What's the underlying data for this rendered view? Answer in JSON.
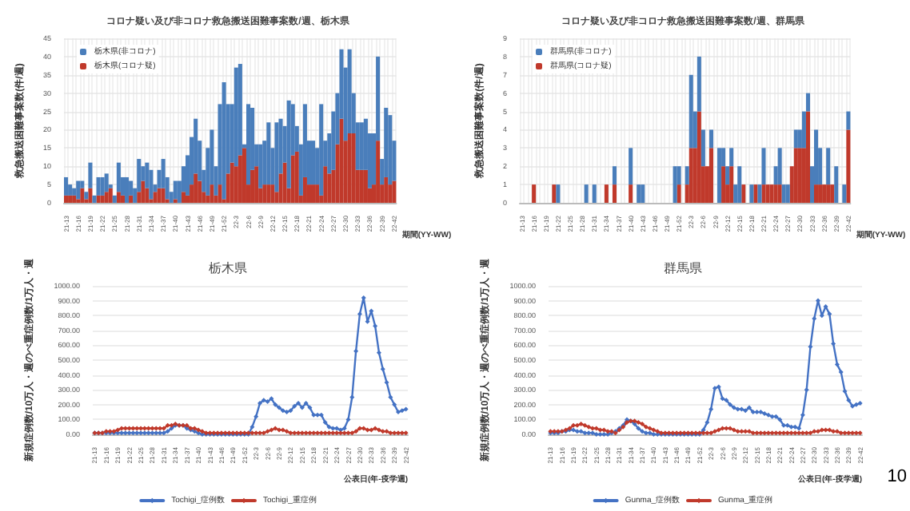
{
  "chart_data": [
    {
      "type": "bar",
      "title": "コロナ疑い及び非コロナ救急搬送困難事案数/週、栃木県",
      "xlabel": "期間(YY-WW)",
      "ylabel": "救急搬送困難事案数(件/週)",
      "stacked": true,
      "grid": true,
      "legend": "top left",
      "ylim": [
        0,
        45
      ],
      "yticks": [
        0,
        5,
        10,
        15,
        20,
        25,
        30,
        35,
        40,
        45
      ],
      "categories": [
        "21-13",
        null,
        null,
        "21-16",
        null,
        null,
        "21-19",
        null,
        null,
        "21-22",
        null,
        null,
        "21-25",
        null,
        null,
        "21-28",
        null,
        null,
        "21-31",
        null,
        null,
        "21-34",
        null,
        null,
        "21-37",
        null,
        null,
        "21-40",
        null,
        null,
        "21-43",
        null,
        null,
        "21-46",
        null,
        null,
        "21-49",
        null,
        null,
        "21-52",
        null,
        null,
        "22-3",
        null,
        null,
        "22-6",
        null,
        null,
        "22-9",
        null,
        null,
        "22-12",
        null,
        null,
        "22-15",
        null,
        null,
        "22-18",
        null,
        null,
        "22-21",
        null,
        null,
        "22-24",
        null,
        null,
        "22-27",
        null,
        null,
        "22-30",
        null,
        null,
        "22-33",
        null,
        null,
        "22-36",
        null,
        null,
        "22-39",
        null,
        null,
        "22-42"
      ],
      "series": [
        {
          "name": "栃木県(コロナ疑)",
          "color": "#c0392b",
          "values": [
            2,
            2,
            2,
            1,
            4,
            1,
            4,
            0,
            2,
            2,
            3,
            4,
            0,
            3,
            2,
            0,
            2,
            0,
            3,
            6,
            4,
            1,
            3,
            4,
            4,
            1,
            0,
            1,
            0,
            3,
            2,
            5,
            8,
            6,
            3,
            2,
            5,
            2,
            5,
            1,
            8,
            11,
            10,
            13,
            15,
            5,
            9,
            10,
            4,
            5,
            5,
            5,
            3,
            8,
            11,
            4,
            13,
            14,
            2,
            7,
            5,
            5,
            5,
            2,
            10,
            8,
            9,
            16,
            23,
            17,
            19,
            19,
            9,
            9,
            9,
            4,
            5,
            17,
            5,
            7,
            5,
            6
          ]
        },
        {
          "name": "栃木県(非コロナ)",
          "color": "#4a7ebb",
          "values": [
            5,
            3,
            2,
            5,
            2,
            2,
            7,
            2,
            5,
            5,
            5,
            1,
            2,
            8,
            5,
            7,
            4,
            4,
            9,
            4,
            7,
            8,
            2,
            5,
            8,
            6,
            3,
            5,
            6,
            7,
            11,
            13,
            15,
            11,
            6,
            13,
            15,
            8,
            22,
            32,
            19,
            16,
            27,
            25,
            1,
            22,
            17,
            6,
            12,
            12,
            17,
            10,
            19,
            15,
            10,
            24,
            14,
            7,
            14,
            20,
            12,
            12,
            10,
            25,
            7,
            11,
            16,
            14,
            19,
            20,
            23,
            11,
            13,
            13,
            14,
            15,
            14,
            23,
            7,
            19,
            19,
            11
          ]
        }
      ]
    },
    {
      "type": "bar",
      "title": "コロナ疑い及び非コロナ救急搬送困難事案数/週、群馬県",
      "xlabel": "期間(YY-WW)",
      "ylabel": "救急搬送困難事案数(件/週)",
      "stacked": true,
      "grid": true,
      "legend": "top left",
      "ylim": [
        0,
        9
      ],
      "yticks": [
        0,
        1,
        2,
        3,
        4,
        5,
        6,
        7,
        8,
        9
      ],
      "categories": [
        "21-13",
        null,
        null,
        "21-16",
        null,
        null,
        "21-19",
        null,
        null,
        "21-22",
        null,
        null,
        "21-25",
        null,
        null,
        "21-28",
        null,
        null,
        "21-31",
        null,
        null,
        "21-34",
        null,
        null,
        "21-37",
        null,
        null,
        "21-40",
        null,
        null,
        "21-43",
        null,
        null,
        "21-46",
        null,
        null,
        "21-49",
        null,
        null,
        "21-52",
        null,
        null,
        "22-3",
        null,
        null,
        "22-6",
        null,
        null,
        "22-9",
        null,
        null,
        "22-12",
        null,
        null,
        "22-15",
        null,
        null,
        "22-18",
        null,
        null,
        "22-21",
        null,
        null,
        "22-24",
        null,
        null,
        "22-27",
        null,
        null,
        "22-30",
        null,
        null,
        "22-33",
        null,
        null,
        "22-36",
        null,
        null,
        "22-39",
        null,
        null,
        "22-42"
      ],
      "series": [
        {
          "name": "群馬県(コロナ疑)",
          "color": "#c0392b",
          "values": [
            0,
            0,
            0,
            1,
            0,
            0,
            0,
            0,
            1,
            0,
            0,
            0,
            0,
            0,
            0,
            0,
            0,
            0,
            0,
            0,
            0,
            1,
            0,
            1,
            0,
            0,
            0,
            1,
            0,
            0,
            0,
            0,
            0,
            0,
            0,
            0,
            0,
            0,
            0,
            1,
            0,
            1,
            3,
            3,
            5,
            2,
            2,
            3,
            0,
            0,
            2,
            1,
            2,
            0,
            0,
            1,
            0,
            0,
            1,
            0,
            1,
            1,
            1,
            1,
            1,
            0,
            0,
            2,
            3,
            3,
            3,
            5,
            0,
            1,
            1,
            1,
            1,
            1,
            0,
            0,
            0,
            4
          ]
        },
        {
          "name": "群馬県(非コロナ)",
          "color": "#4a7ebb",
          "values": [
            0,
            0,
            0,
            0,
            0,
            0,
            0,
            0,
            0,
            1,
            0,
            0,
            0,
            0,
            0,
            0,
            1,
            0,
            1,
            0,
            0,
            0,
            0,
            1,
            0,
            0,
            0,
            2,
            0,
            1,
            1,
            0,
            0,
            0,
            0,
            0,
            0,
            0,
            2,
            1,
            0,
            1,
            4,
            2,
            3,
            2,
            0,
            1,
            0,
            3,
            1,
            1,
            1,
            1,
            2,
            0,
            0,
            1,
            0,
            1,
            2,
            0,
            0,
            1,
            2,
            1,
            1,
            0,
            1,
            1,
            2,
            1,
            2,
            3,
            2,
            0,
            2,
            0,
            2,
            0,
            1,
            1
          ]
        }
      ]
    },
    {
      "type": "line",
      "title": "栃木県",
      "xlabel": "公表日(年-疫学週)",
      "ylabel": "新規症例数/10万人・週のべ重症例数/1万人・週",
      "grid": "y",
      "legend": "bottom",
      "marker": "diamond",
      "line_style": "solid",
      "ylim": [
        0,
        1000
      ],
      "yticks": [
        {
          "value": 0,
          "label": "0.00"
        },
        {
          "value": 100,
          "label": "100.00"
        },
        {
          "value": 200,
          "label": "200.00"
        },
        {
          "value": 300,
          "label": "300.00"
        },
        {
          "value": 400,
          "label": "400.00"
        },
        {
          "value": 500,
          "label": "500.00"
        },
        {
          "value": 600,
          "label": "600.00"
        },
        {
          "value": 700,
          "label": "700.00"
        },
        {
          "value": 800,
          "label": "800.00"
        },
        {
          "value": 900,
          "label": "900.00"
        },
        {
          "value": 1000,
          "label": "1000.00"
        }
      ],
      "categories": [
        "21-13",
        null,
        null,
        "21-16",
        null,
        null,
        "21-19",
        null,
        null,
        "21-22",
        null,
        null,
        "21-25",
        null,
        null,
        "21-28",
        null,
        null,
        "21-31",
        null,
        null,
        "21-34",
        null,
        null,
        "21-37",
        null,
        null,
        "21-40",
        null,
        null,
        "21-43",
        null,
        null,
        "21-46",
        null,
        null,
        "21-49",
        null,
        null,
        "21-52",
        null,
        null,
        "22-3",
        null,
        null,
        "22-6",
        null,
        null,
        "22-9",
        null,
        null,
        "22-12",
        null,
        null,
        "22-15",
        null,
        null,
        "22-18",
        null,
        null,
        "22-21",
        null,
        null,
        "22-24",
        null,
        null,
        "22-27",
        null,
        null,
        "22-30",
        null,
        null,
        "22-33",
        null,
        null,
        "22-36",
        null,
        null,
        "22-39",
        null,
        null,
        "22-42"
      ],
      "series": [
        {
          "name": "Tochigi_症例数",
          "color": "#4472c4",
          "values": [
            10,
            10,
            10,
            10,
            10,
            10,
            10,
            10,
            10,
            10,
            10,
            10,
            10,
            10,
            10,
            10,
            10,
            10,
            10,
            20,
            40,
            60,
            60,
            60,
            40,
            30,
            20,
            10,
            0,
            0,
            0,
            0,
            0,
            0,
            0,
            0,
            0,
            0,
            0,
            0,
            0,
            50,
            120,
            210,
            230,
            220,
            240,
            200,
            180,
            160,
            150,
            160,
            190,
            210,
            180,
            210,
            180,
            130,
            130,
            130,
            80,
            50,
            40,
            40,
            30,
            40,
            100,
            250,
            560,
            810,
            920,
            760,
            830,
            730,
            550,
            440,
            350,
            250,
            200,
            150,
            160,
            170
          ]
        },
        {
          "name": "Tochigi_重症例",
          "color": "#c0392b",
          "values": [
            10,
            10,
            10,
            20,
            20,
            20,
            30,
            40,
            40,
            40,
            40,
            40,
            40,
            40,
            40,
            40,
            40,
            40,
            40,
            60,
            60,
            70,
            60,
            60,
            60,
            40,
            40,
            30,
            20,
            10,
            10,
            10,
            10,
            10,
            10,
            10,
            10,
            10,
            10,
            10,
            10,
            10,
            10,
            10,
            10,
            20,
            30,
            40,
            30,
            30,
            20,
            10,
            10,
            10,
            10,
            10,
            10,
            10,
            10,
            10,
            10,
            10,
            10,
            10,
            10,
            10,
            10,
            10,
            20,
            40,
            40,
            30,
            30,
            40,
            30,
            20,
            20,
            10,
            10,
            10,
            10,
            10
          ]
        }
      ]
    },
    {
      "type": "line",
      "title": "群馬県",
      "xlabel": "公表日(年-疫学週)",
      "ylabel": "新規症例数/10万人・週のべ重症例数/1万人・週",
      "grid": "y",
      "legend": "bottom",
      "marker": "diamond",
      "line_style": "solid",
      "ylim": [
        0,
        1000
      ],
      "annotations": [
        "10"
      ],
      "yticks": [
        {
          "value": 0,
          "label": "0.00"
        },
        {
          "value": 100,
          "label": "100.00"
        },
        {
          "value": 200,
          "label": "200.00"
        },
        {
          "value": 300,
          "label": "300.00"
        },
        {
          "value": 400,
          "label": "400.00"
        },
        {
          "value": 500,
          "label": "500.00"
        },
        {
          "value": 600,
          "label": "600.00"
        },
        {
          "value": 700,
          "label": "700.00"
        },
        {
          "value": 800,
          "label": "800.00"
        },
        {
          "value": 900,
          "label": "900.00"
        },
        {
          "value": 1000,
          "label": "1000.00"
        }
      ],
      "categories": [
        "21-13",
        null,
        null,
        "21-16",
        null,
        null,
        "21-19",
        null,
        null,
        "21-22",
        null,
        null,
        "21-25",
        null,
        null,
        "21-28",
        null,
        null,
        "21-31",
        null,
        null,
        "21-34",
        null,
        null,
        "21-37",
        null,
        null,
        "21-40",
        null,
        null,
        "21-43",
        null,
        null,
        "21-46",
        null,
        null,
        "21-49",
        null,
        null,
        "21-52",
        null,
        null,
        "22-3",
        null,
        null,
        "22-6",
        null,
        null,
        "22-9",
        null,
        null,
        "22-12",
        null,
        null,
        "22-15",
        null,
        null,
        "22-18",
        null,
        null,
        "22-21",
        null,
        null,
        "22-24",
        null,
        null,
        "22-27",
        null,
        null,
        "22-30",
        null,
        null,
        "22-33",
        null,
        null,
        "22-36",
        null,
        null,
        "22-39",
        null,
        null,
        "22-42"
      ],
      "series": [
        {
          "name": "Gunma_症例数",
          "color": "#4472c4",
          "values": [
            10,
            10,
            10,
            20,
            20,
            30,
            30,
            20,
            20,
            10,
            10,
            10,
            0,
            0,
            0,
            0,
            10,
            20,
            40,
            60,
            100,
            90,
            70,
            40,
            20,
            10,
            10,
            0,
            0,
            0,
            0,
            0,
            0,
            0,
            0,
            0,
            0,
            0,
            0,
            0,
            30,
            80,
            170,
            310,
            320,
            240,
            230,
            200,
            180,
            170,
            170,
            160,
            180,
            150,
            150,
            150,
            140,
            130,
            120,
            120,
            100,
            60,
            60,
            50,
            50,
            40,
            130,
            300,
            590,
            780,
            900,
            800,
            860,
            810,
            610,
            470,
            420,
            290,
            230,
            190,
            200,
            210
          ]
        },
        {
          "name": "Gunma_重症例",
          "color": "#c0392b",
          "values": [
            20,
            20,
            20,
            20,
            30,
            40,
            60,
            60,
            70,
            60,
            50,
            40,
            40,
            30,
            30,
            20,
            20,
            10,
            30,
            50,
            80,
            90,
            90,
            80,
            70,
            50,
            40,
            30,
            20,
            10,
            10,
            10,
            10,
            10,
            10,
            10,
            10,
            10,
            10,
            10,
            10,
            10,
            10,
            20,
            30,
            40,
            40,
            40,
            30,
            20,
            20,
            20,
            20,
            10,
            10,
            10,
            10,
            10,
            10,
            10,
            10,
            10,
            10,
            10,
            10,
            10,
            10,
            10,
            10,
            20,
            20,
            30,
            30,
            30,
            20,
            20,
            10,
            10,
            10,
            10,
            10,
            10
          ]
        }
      ]
    }
  ]
}
